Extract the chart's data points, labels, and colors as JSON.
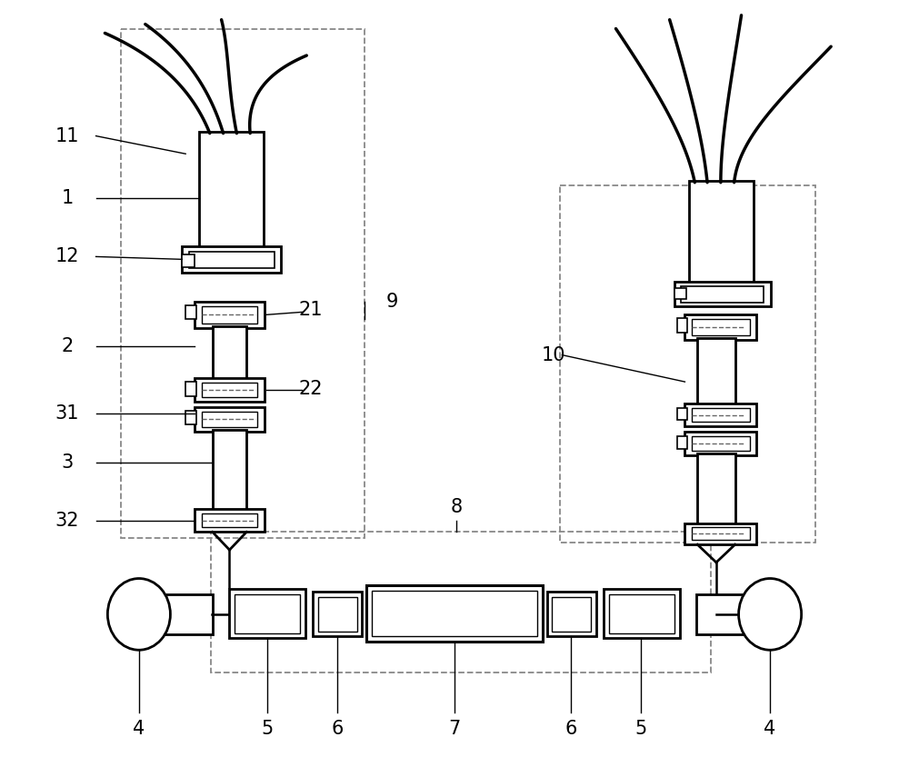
{
  "bg_color": "#ffffff",
  "fig_width": 10.0,
  "fig_height": 8.55,
  "line_color": "#000000",
  "dash_color": "#888888"
}
